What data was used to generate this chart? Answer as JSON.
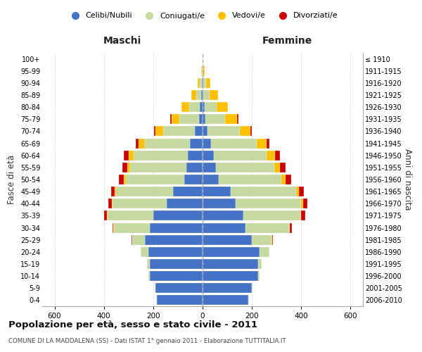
{
  "age_groups": [
    "0-4",
    "5-9",
    "10-14",
    "15-19",
    "20-24",
    "25-29",
    "30-34",
    "35-39",
    "40-44",
    "45-49",
    "50-54",
    "55-59",
    "60-64",
    "65-69",
    "70-74",
    "75-79",
    "80-84",
    "85-89",
    "90-94",
    "95-99",
    "100+"
  ],
  "birth_years": [
    "2006-2010",
    "2001-2005",
    "1996-2000",
    "1991-1995",
    "1986-1990",
    "1981-1985",
    "1976-1980",
    "1971-1975",
    "1966-1970",
    "1961-1965",
    "1956-1960",
    "1951-1955",
    "1946-1950",
    "1941-1945",
    "1936-1940",
    "1931-1935",
    "1926-1930",
    "1921-1925",
    "1916-1920",
    "1911-1915",
    "≤ 1910"
  ],
  "colors": {
    "celibi": "#4472c4",
    "coniugati": "#c5d9a0",
    "vedovi": "#ffc000",
    "divorziati": "#cc0000"
  },
  "males": {
    "celibi": [
      185,
      190,
      215,
      215,
      220,
      235,
      215,
      200,
      145,
      120,
      75,
      65,
      60,
      50,
      30,
      15,
      10,
      5,
      2,
      1,
      0
    ],
    "coniugati": [
      2,
      3,
      5,
      10,
      30,
      50,
      145,
      185,
      220,
      230,
      235,
      230,
      220,
      185,
      130,
      80,
      45,
      20,
      8,
      2,
      0
    ],
    "vedovi": [
      0,
      0,
      0,
      0,
      0,
      1,
      1,
      2,
      3,
      5,
      8,
      10,
      18,
      25,
      30,
      30,
      30,
      20,
      10,
      3,
      0
    ],
    "divorziati": [
      0,
      0,
      0,
      0,
      0,
      2,
      5,
      12,
      15,
      15,
      20,
      20,
      20,
      10,
      8,
      5,
      0,
      0,
      0,
      0,
      0
    ]
  },
  "females": {
    "nubili": [
      185,
      200,
      225,
      225,
      230,
      200,
      175,
      165,
      135,
      115,
      65,
      55,
      45,
      35,
      20,
      10,
      8,
      4,
      2,
      1,
      0
    ],
    "coniugate": [
      2,
      3,
      5,
      15,
      40,
      80,
      175,
      230,
      265,
      265,
      255,
      235,
      215,
      185,
      130,
      80,
      50,
      25,
      12,
      3,
      0
    ],
    "vedove": [
      0,
      0,
      0,
      0,
      0,
      1,
      3,
      5,
      8,
      10,
      15,
      25,
      35,
      40,
      45,
      50,
      45,
      35,
      18,
      5,
      0
    ],
    "divorziate": [
      0,
      0,
      0,
      0,
      0,
      3,
      8,
      15,
      18,
      20,
      25,
      20,
      18,
      10,
      5,
      5,
      0,
      0,
      0,
      0,
      0
    ]
  },
  "title": "Popolazione per età, sesso e stato civile - 2011",
  "subtitle": "COMUNE DI LA MADDALENA (SS) - Dati ISTAT 1° gennaio 2011 - Elaborazione TUTTITALIA.IT",
  "xlabel_left": "Maschi",
  "xlabel_right": "Femmine",
  "ylabel_left": "Fasce di età",
  "ylabel_right": "Anni di nascita",
  "xlim": 650,
  "legend_labels": [
    "Celibi/Nubili",
    "Coniugati/e",
    "Vedovi/e",
    "Divorziati/e"
  ],
  "legend_colors_circle": [
    "#4472c4",
    "#c5d9a0",
    "#ffc000",
    "#cc0000"
  ]
}
